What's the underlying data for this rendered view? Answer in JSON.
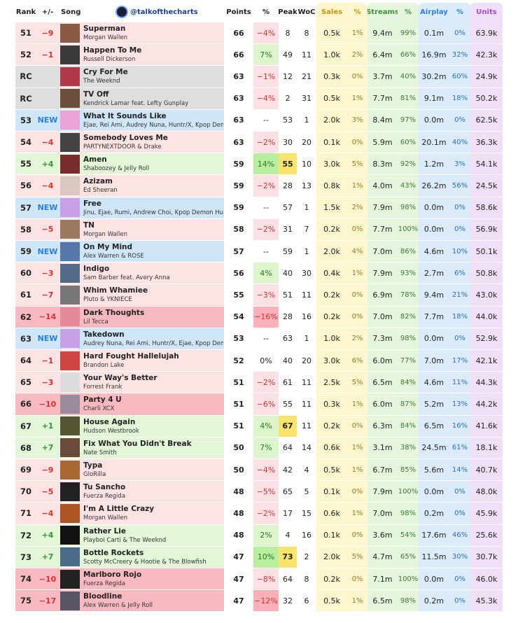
{
  "header": {
    "handle": "@talkofthecharts",
    "columns": [
      "Rank",
      "+/-",
      "Song",
      "Points",
      "%",
      "Peak",
      "WoC",
      "Sales",
      "%",
      "Streams",
      "%",
      "Airplay",
      "%",
      "Units"
    ]
  },
  "rows": [
    [
      "51",
      "−9",
      "Superman",
      "Morgan Wallen",
      "66",
      "−4%",
      "8",
      "8",
      "0.5k",
      "1%",
      "9.4m",
      "99%",
      "0.1m",
      "0%",
      "63.9k"
    ],
    [
      "52",
      "−1",
      "Happen To Me",
      "Russell Dickerson",
      "66",
      "7%",
      "49",
      "11",
      "1.0k",
      "2%",
      "6.4m",
      "66%",
      "16.9m",
      "32%",
      "42.3k"
    ],
    [
      "RC",
      "",
      "Cry For Me",
      "The Weeknd",
      "63",
      "−1%",
      "12",
      "21",
      "0.3k",
      "0%",
      "3.7m",
      "40%",
      "30.2m",
      "60%",
      "24.9k"
    ],
    [
      "RC",
      "",
      "TV Off",
      "Kendrick Lamar feat. Lefty Gunplay",
      "63",
      "−4%",
      "2",
      "31",
      "0.5k",
      "1%",
      "7.7m",
      "81%",
      "9.1m",
      "18%",
      "50.2k"
    ],
    [
      "53",
      "NEW",
      "What It Sounds Like",
      "Ejae, Rei Ami, Audrey Nuna, Huntr/X, Kpop Demon Hunters",
      "63",
      "--",
      "53",
      "1",
      "2.0k",
      "3%",
      "8.4m",
      "97%",
      "0.0m",
      "0%",
      "62.5k"
    ],
    [
      "54",
      "−4",
      "Somebody Loves Me",
      "PARTYNEXTDOOR & Drake",
      "63",
      "−2%",
      "30",
      "20",
      "0.1k",
      "0%",
      "5.9m",
      "60%",
      "20.1m",
      "40%",
      "36.3k"
    ],
    [
      "55",
      "+4",
      "Amen",
      "Shaboozey & Jelly Roll",
      "59",
      "14%",
      "55",
      "10",
      "3.0k",
      "5%",
      "8.3m",
      "92%",
      "1.2m",
      "3%",
      "54.1k"
    ],
    [
      "56",
      "−4",
      "Azizam",
      "Ed Sheeran",
      "59",
      "−2%",
      "28",
      "13",
      "0.8k",
      "1%",
      "4.0m",
      "43%",
      "26.2m",
      "56%",
      "24.5k"
    ],
    [
      "57",
      "NEW",
      "Free",
      "Jinu, Ejae, Rumi, Andrew Choi, Kpop Demon Hunters",
      "59",
      "--",
      "57",
      "1",
      "1.5k",
      "2%",
      "7.9m",
      "98%",
      "0.0m",
      "0%",
      "58.6k"
    ],
    [
      "58",
      "−5",
      "TN",
      "Morgan Wallen",
      "58",
      "−2%",
      "31",
      "7",
      "0.2k",
      "0%",
      "7.7m",
      "100%",
      "0.0m",
      "0%",
      "56.9k"
    ],
    [
      "59",
      "NEW",
      "On My Mind",
      "Alex Warren & ROSE",
      "57",
      "--",
      "59",
      "1",
      "2.0k",
      "4%",
      "7.0m",
      "86%",
      "4.6m",
      "10%",
      "50.1k"
    ],
    [
      "60",
      "−3",
      "Indigo",
      "Sam Barber feat. Avery Anna",
      "56",
      "4%",
      "40",
      "30",
      "0.4k",
      "1%",
      "7.9m",
      "93%",
      "2.7m",
      "6%",
      "50.8k"
    ],
    [
      "61",
      "−7",
      "Whim Whamiee",
      "Pluto & YKNIECE",
      "55",
      "−3%",
      "51",
      "11",
      "0.2k",
      "0%",
      "6.9m",
      "78%",
      "9.4m",
      "21%",
      "43.0k"
    ],
    [
      "62",
      "−14",
      "Dark Thoughts",
      "Lil Tecca",
      "54",
      "−16%",
      "28",
      "16",
      "0.2k",
      "0%",
      "7.0m",
      "82%",
      "7.7m",
      "18%",
      "44.0k"
    ],
    [
      "63",
      "NEW",
      "Takedown",
      "Audrey Nuna, Rei Ami, Huntr/X, Ejae, Kpop Demon Hunters",
      "53",
      "--",
      "63",
      "1",
      "1.0k",
      "2%",
      "7.3m",
      "98%",
      "0.0m",
      "0%",
      "52.9k"
    ],
    [
      "64",
      "−1",
      "Hard Fought Hallelujah",
      "Brandon Lake",
      "52",
      "0%",
      "40",
      "20",
      "3.0k",
      "6%",
      "6.0m",
      "77%",
      "7.0m",
      "17%",
      "42.1k"
    ],
    [
      "65",
      "−3",
      "Your Way's Better",
      "Forrest Frank",
      "51",
      "−2%",
      "61",
      "11",
      "2.5k",
      "5%",
      "6.5m",
      "84%",
      "4.6m",
      "11%",
      "44.3k"
    ],
    [
      "66",
      "−10",
      "Party 4 U",
      "Charli XCX",
      "51",
      "−6%",
      "55",
      "11",
      "0.3k",
      "1%",
      "6.0m",
      "87%",
      "5.2m",
      "13%",
      "44.2k"
    ],
    [
      "67",
      "+1",
      "House Again",
      "Hudson Westbrook",
      "51",
      "4%",
      "67",
      "11",
      "0.2k",
      "0%",
      "6.3m",
      "84%",
      "6.5m",
      "16%",
      "41.6k"
    ],
    [
      "68",
      "+7",
      "Fix What You Didn't Break",
      "Nate Smith",
      "50",
      "7%",
      "64",
      "14",
      "0.6k",
      "1%",
      "3.1m",
      "38%",
      "24.5m",
      "61%",
      "18.1k"
    ],
    [
      "69",
      "−9",
      "Typa",
      "GloRilla",
      "50",
      "−4%",
      "42",
      "4",
      "0.5k",
      "1%",
      "6.7m",
      "85%",
      "5.6m",
      "14%",
      "40.7k"
    ],
    [
      "70",
      "−5",
      "Tu Sancho",
      "Fuerza Regida",
      "48",
      "−5%",
      "65",
      "5",
      "0.1k",
      "0%",
      "7.9m",
      "100%",
      "0.0m",
      "0%",
      "48.0k"
    ],
    [
      "71",
      "−4",
      "I'm A Little Crazy",
      "Morgan Wallen",
      "48",
      "−2%",
      "17",
      "15",
      "0.6k",
      "1%",
      "7.0m",
      "98%",
      "0.2m",
      "0%",
      "45.9k"
    ],
    [
      "72",
      "+4",
      "Rather Lie",
      "Playboi Carti & The Weeknd",
      "48",
      "2%",
      "4",
      "16",
      "0.1k",
      "0%",
      "3.6m",
      "54%",
      "17.6m",
      "46%",
      "25.6k"
    ],
    [
      "73",
      "+7",
      "Bottle Rockets",
      "Scotty McCreery & Hootie & The Blowfish",
      "47",
      "10%",
      "73",
      "2",
      "2.0k",
      "5%",
      "4.7m",
      "65%",
      "11.5m",
      "30%",
      "30.7k"
    ],
    [
      "74",
      "−10",
      "Marlboro Rojo",
      "Fuerza Regida",
      "47",
      "−8%",
      "64",
      "8",
      "0.2k",
      "0%",
      "7.1m",
      "100%",
      "0.0m",
      "0%",
      "46.0k"
    ],
    [
      "75",
      "−17",
      "Bloodline",
      "Alex Warren & Jelly Roll",
      "47",
      "−12%",
      "32",
      "6",
      "0.5k",
      "1%",
      "6.5m",
      "98%",
      "0.2m",
      "0%",
      "45.3k"
    ]
  ]
}
